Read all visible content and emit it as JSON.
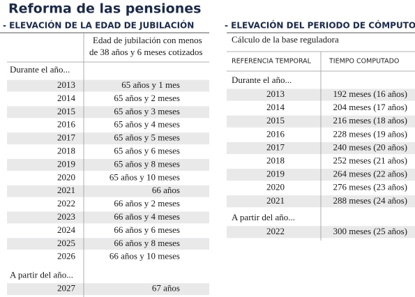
{
  "title": "Reforma de las pensiones",
  "left": {
    "heading": "- ELEVACIÓN DE LA EDAD DE JUBILACIÓN",
    "column_header": [
      "Edad de jubilación con menos",
      "de 38 años y 6 meses cotizados"
    ],
    "groups": [
      {
        "label": "Durante el año...",
        "rows": [
          [
            "2013",
            "65 años y 1 mes"
          ],
          [
            "2014",
            "65 años y 2 meses"
          ],
          [
            "2015",
            "65 años y 3 meses"
          ],
          [
            "2016",
            "65 años y 4 meses"
          ],
          [
            "2017",
            "65 años y 5 meses"
          ],
          [
            "2018",
            "65 años y 6 meses"
          ],
          [
            "2019",
            "65 años y 8 meses"
          ],
          [
            "2020",
            "65 años y 10 meses"
          ],
          [
            "2021",
            "66 años"
          ],
          [
            "2022",
            "66 años y 2 meses"
          ],
          [
            "2023",
            "66 años y 4 meses"
          ],
          [
            "2024",
            "66 años y 6 meses"
          ],
          [
            "2025",
            "66 años y 8 meses"
          ],
          [
            "2026",
            "66 años y 10 meses"
          ]
        ]
      },
      {
        "label": "A partir del año...",
        "rows": [
          [
            "2027",
            "67 años"
          ]
        ]
      }
    ]
  },
  "right": {
    "heading": "- ELEVACIÓN DEL PERIODO DE CÓMPUTO",
    "subheading": "Cálculo de la base reguladora",
    "column_headers": [
      "REFERENCIA TEMPORAL",
      "TIEMPO COMPUTADO"
    ],
    "groups": [
      {
        "label": "Durante el año...",
        "rows": [
          [
            "2013",
            "192 meses (16 años)"
          ],
          [
            "2014",
            "204 meses (17 años)"
          ],
          [
            "2015",
            "216 meses (18 años)"
          ],
          [
            "2016",
            "228 meses (19 años)"
          ],
          [
            "2017",
            "240 meses (20 años)"
          ],
          [
            "2018",
            "252 meses (21 años)"
          ],
          [
            "2019",
            "264 meses (22 años)"
          ],
          [
            "2020",
            "276 meses (23 años)"
          ],
          [
            "2021",
            "288 meses (24 años)"
          ]
        ]
      },
      {
        "label": "A partir del año...",
        "rows": [
          [
            "2022",
            "300 meses (25 años)"
          ]
        ]
      }
    ]
  }
}
